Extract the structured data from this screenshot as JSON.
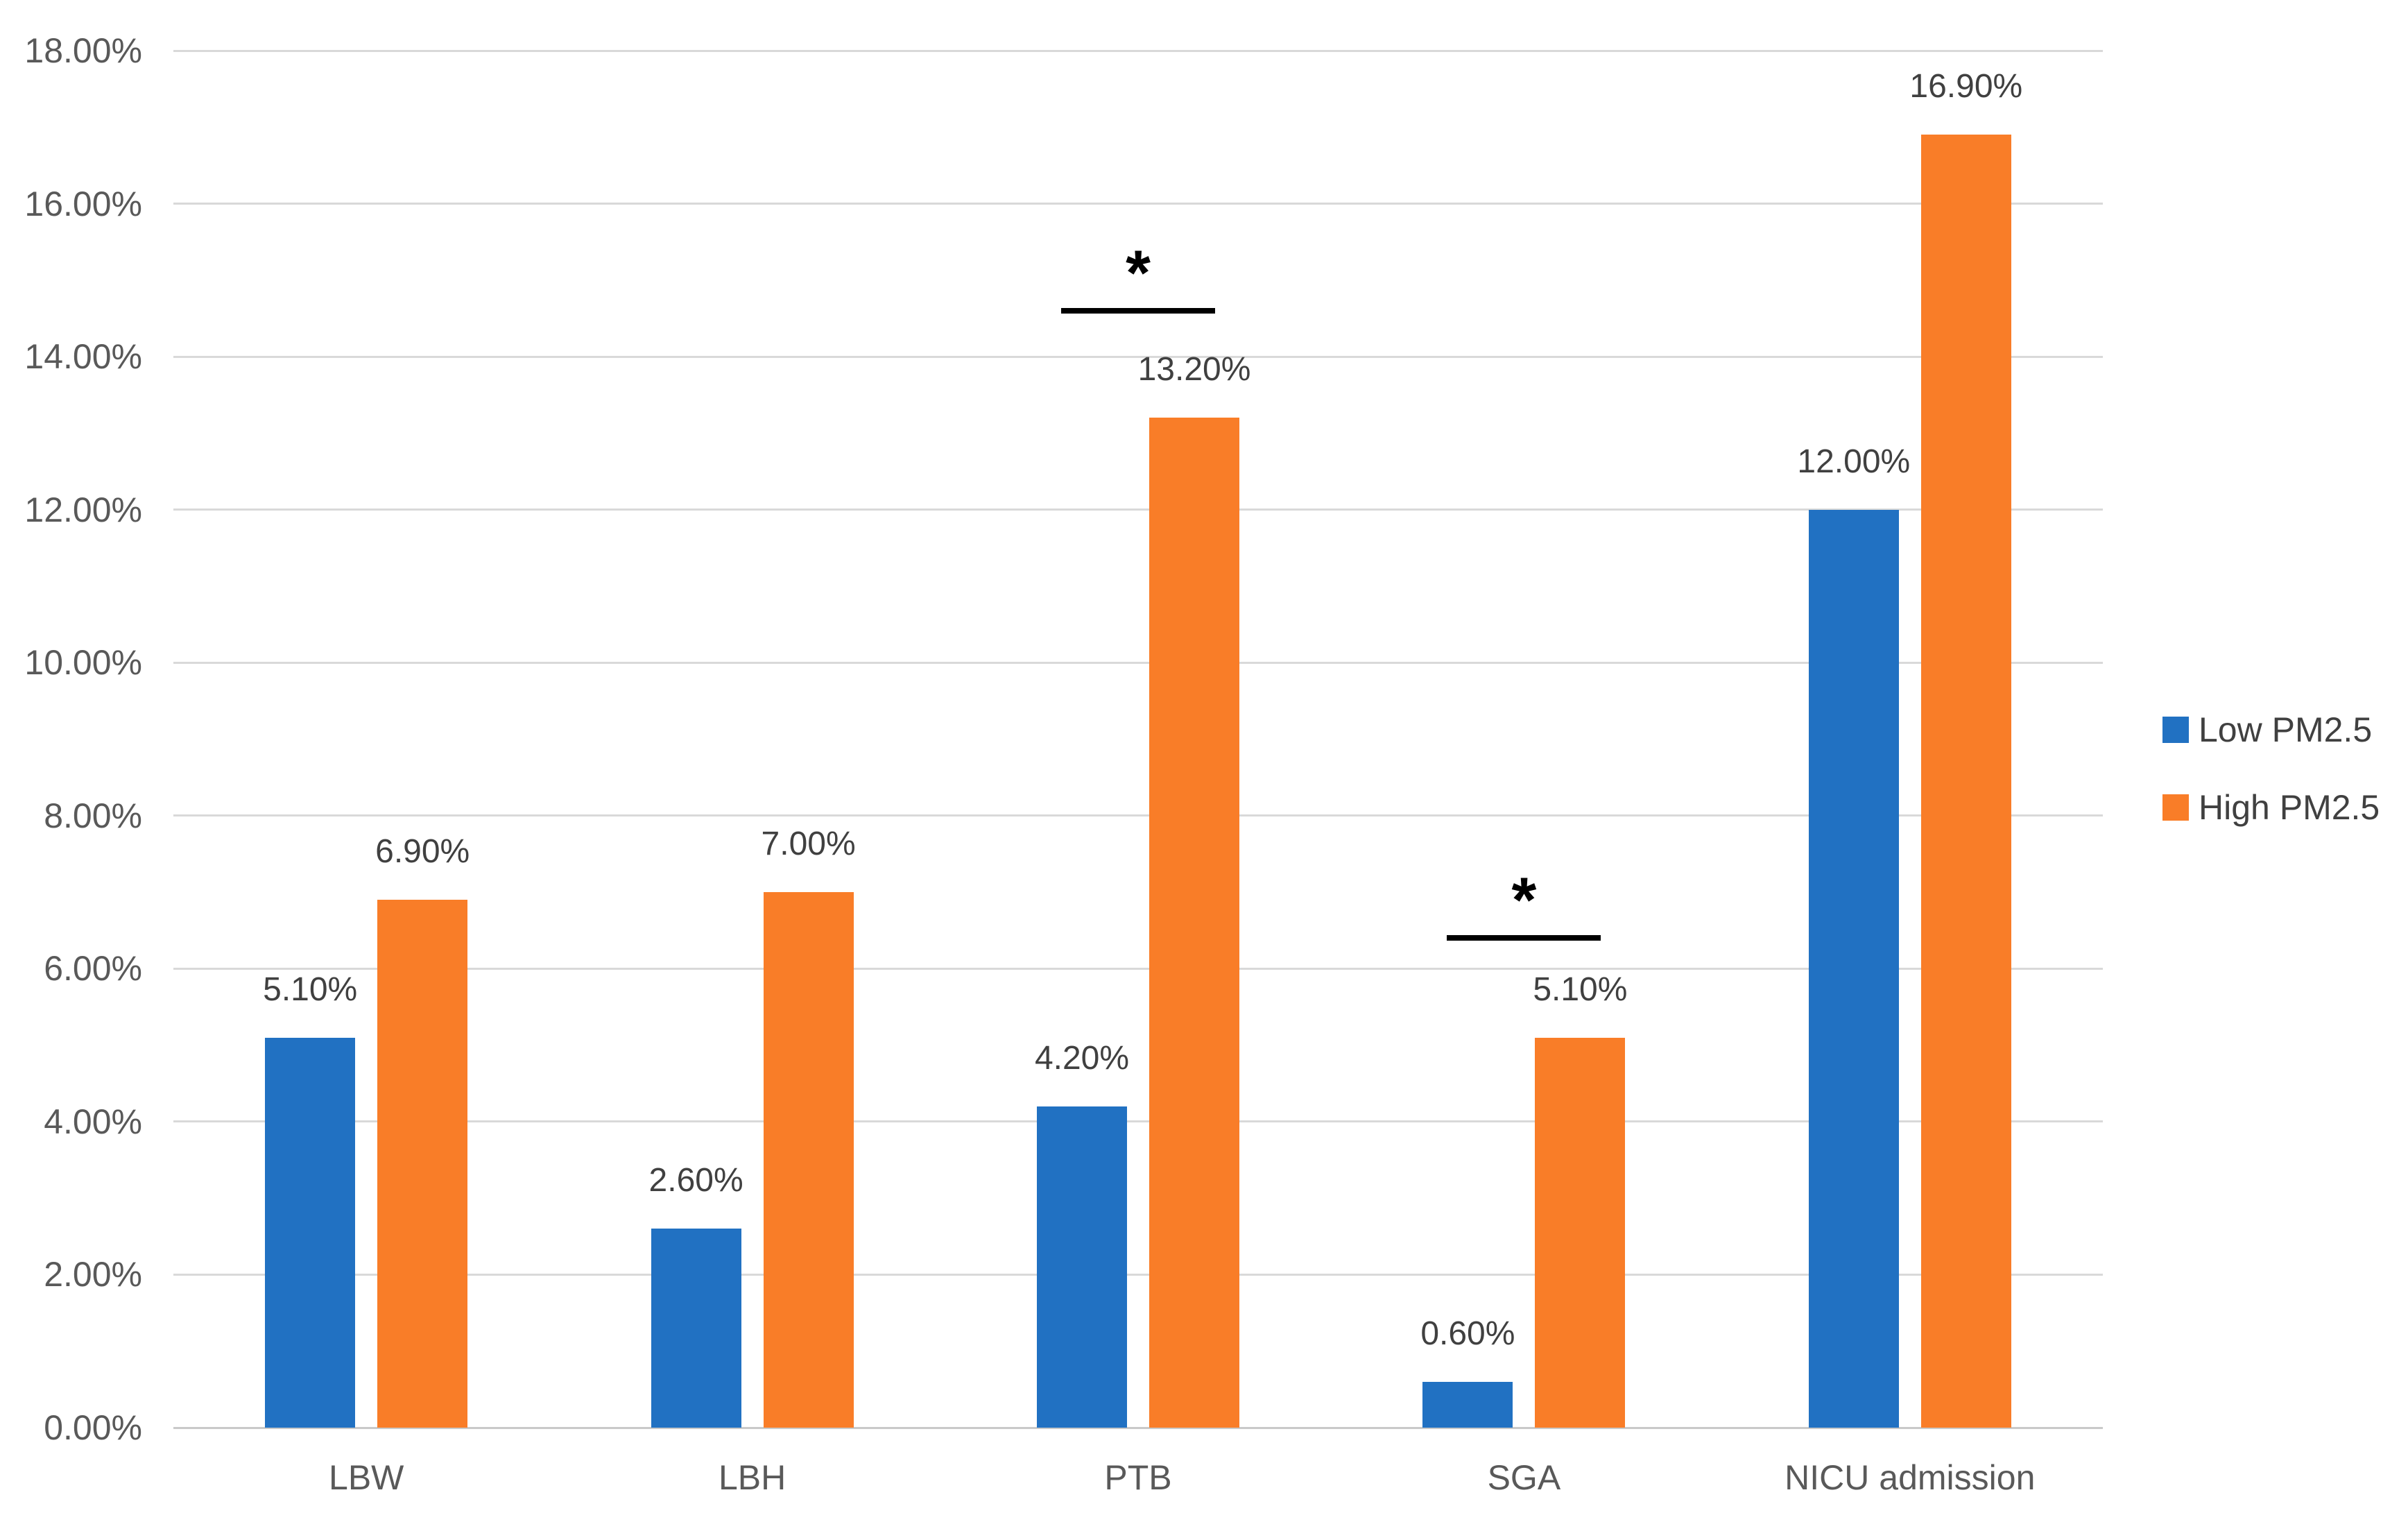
{
  "chart_data": {
    "type": "bar",
    "title": "",
    "xlabel": "",
    "ylabel": "",
    "categories": [
      "LBW",
      "LBH",
      "PTB",
      "SGA",
      "NICU admission"
    ],
    "series": [
      {
        "name": "Low PM2.5",
        "color": "#2171C2",
        "values": [
          5.1,
          2.6,
          4.2,
          0.6,
          12.0
        ],
        "labels": [
          "5.10%",
          "2.60%",
          "4.20%",
          "0.60%",
          "12.00%"
        ]
      },
      {
        "name": "High PM2.5",
        "color": "#F97D28",
        "values": [
          6.9,
          7.0,
          13.2,
          5.1,
          16.9
        ],
        "labels": [
          "6.90%",
          "7.00%",
          "13.20%",
          "5.10%",
          "16.90%"
        ]
      }
    ],
    "ylim": [
      0,
      18
    ],
    "ytick_step": 2,
    "ytick_labels": [
      "0.00%",
      "2.00%",
      "4.00%",
      "6.00%",
      "8.00%",
      "10.00%",
      "12.00%",
      "14.00%",
      "16.00%",
      "18.00%"
    ],
    "grid": true,
    "legend_position": "right",
    "annotations": [
      {
        "category": "PTB",
        "symbol": "*",
        "line_value": 14.6
      },
      {
        "category": "SGA",
        "symbol": "*",
        "line_value": 6.4
      }
    ]
  }
}
